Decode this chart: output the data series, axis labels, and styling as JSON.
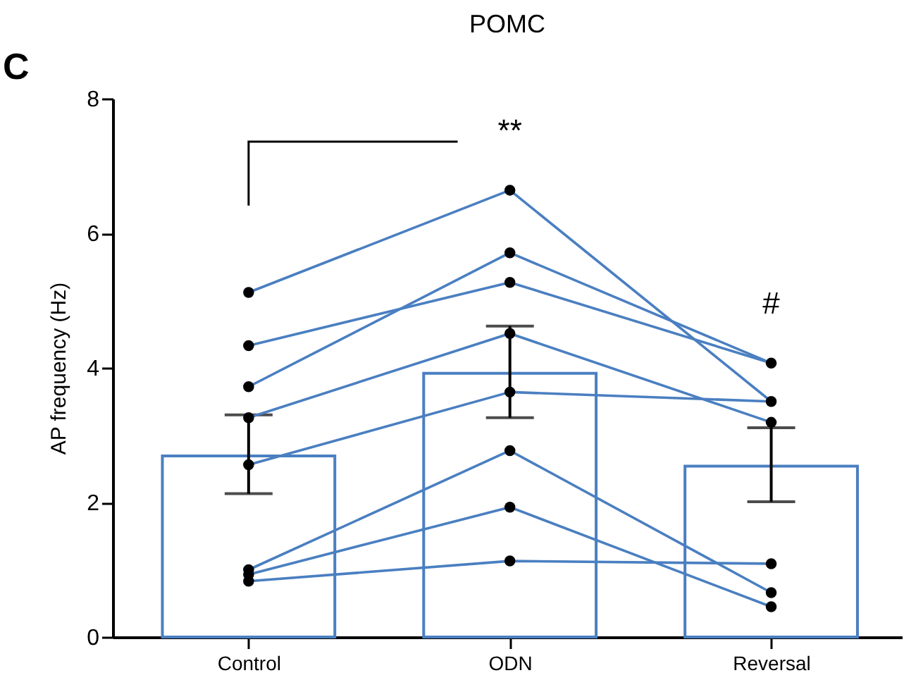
{
  "chart_data": {
    "type": "bar",
    "title": "POMC",
    "ylabel": "AP frequency (Hz)",
    "categories": [
      "Control",
      "ODN",
      "Reversal"
    ],
    "ylim": [
      0,
      8
    ],
    "yticks": [
      0,
      2,
      4,
      6,
      8
    ],
    "grid": false,
    "annotations": [
      "C",
      "**",
      "#"
    ],
    "series": [
      {
        "color": "#4a7fc1",
        "values": [
          2.69,
          3.92,
          2.54
        ],
        "errors": [
          [
            2.13,
            3.3
          ],
          [
            3.26,
            4.62
          ],
          [
            2.01,
            3.11
          ]
        ]
      },
      {
        "type": "line",
        "color": "#4a7fc1",
        "marker": "none",
        "values": [
          5.12,
          6.64,
          3.5
        ]
      },
      {
        "type": "line",
        "color": "#4a7fc1",
        "marker": "none",
        "values": [
          4.33,
          5.27,
          4.07
        ]
      },
      {
        "type": "line",
        "color": "#4a7fc1",
        "marker": "none",
        "values": [
          3.72,
          5.71,
          4.07
        ]
      },
      {
        "type": "line",
        "color": "#4a7fc1",
        "marker": "none",
        "values": [
          3.26,
          4.51,
          3.19
        ]
      },
      {
        "type": "line",
        "color": "#4a7fc1",
        "marker": "none",
        "values": [
          2.56,
          3.64,
          3.5
        ]
      },
      {
        "type": "line",
        "color": "#4a7fc1",
        "marker": "none",
        "values": [
          1.0,
          2.77,
          0.66
        ]
      },
      {
        "type": "line",
        "color": "#4a7fc1",
        "marker": "none",
        "values": [
          0.93,
          1.93,
          0.45
        ]
      },
      {
        "type": "line",
        "color": "#4a7fc1",
        "marker": "none",
        "values": [
          0.83,
          1.13,
          1.09
        ]
      },
      {
        "type": "scatter",
        "color": "#000000",
        "marker": "circle",
        "x": [
          "Control",
          "Control",
          "Control",
          "Control",
          "Control",
          "Control",
          "Control",
          "Control",
          "ODN",
          "ODN",
          "ODN",
          "ODN",
          "ODN",
          "ODN",
          "ODN",
          "ODN",
          "Reversal",
          "Reversal",
          "Reversal",
          "Reversal",
          "Reversal",
          "Reversal"
        ],
        "values": [
          5.12,
          4.33,
          3.72,
          3.26,
          2.56,
          1.0,
          0.93,
          0.83,
          6.64,
          5.71,
          5.27,
          4.51,
          3.64,
          2.77,
          1.93,
          1.13,
          4.07,
          3.5,
          3.19,
          1.09,
          0.66,
          0.45
        ]
      }
    ]
  }
}
